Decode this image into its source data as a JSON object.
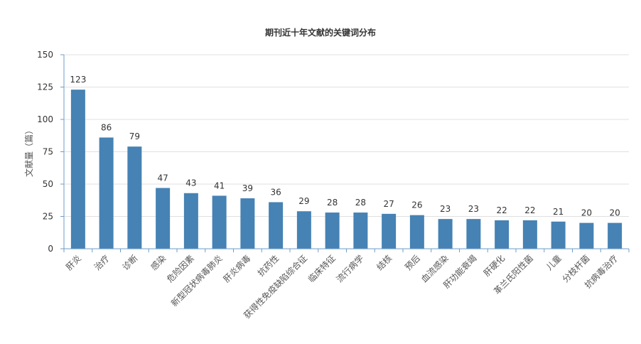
{
  "chart_data": {
    "type": "bar",
    "title": "期刊近十年文献的关键词分布",
    "xlabel": "",
    "ylabel": "文献量（篇）",
    "categories": [
      "肝炎",
      "治疗",
      "诊断",
      "感染",
      "危险因素",
      "新型冠状病毒肺炎",
      "肝炎病毒",
      "抗药性",
      "获得性免疫缺陷综合征",
      "临床特征",
      "流行病学",
      "结核",
      "预后",
      "血流感染",
      "肝功能衰竭",
      "肝硬化",
      "革兰氏阳性菌",
      "儿童",
      "分枝杆菌",
      "抗病毒治疗"
    ],
    "values": [
      123,
      86,
      79,
      47,
      43,
      41,
      39,
      36,
      29,
      28,
      28,
      27,
      26,
      23,
      23,
      22,
      22,
      21,
      20,
      20
    ],
    "ylim": [
      0,
      150
    ],
    "yticks": [
      0,
      25,
      50,
      75,
      100,
      125,
      150
    ],
    "grid": true,
    "bar_color": "#4682b4",
    "axis_color": "#6e9cc8"
  }
}
